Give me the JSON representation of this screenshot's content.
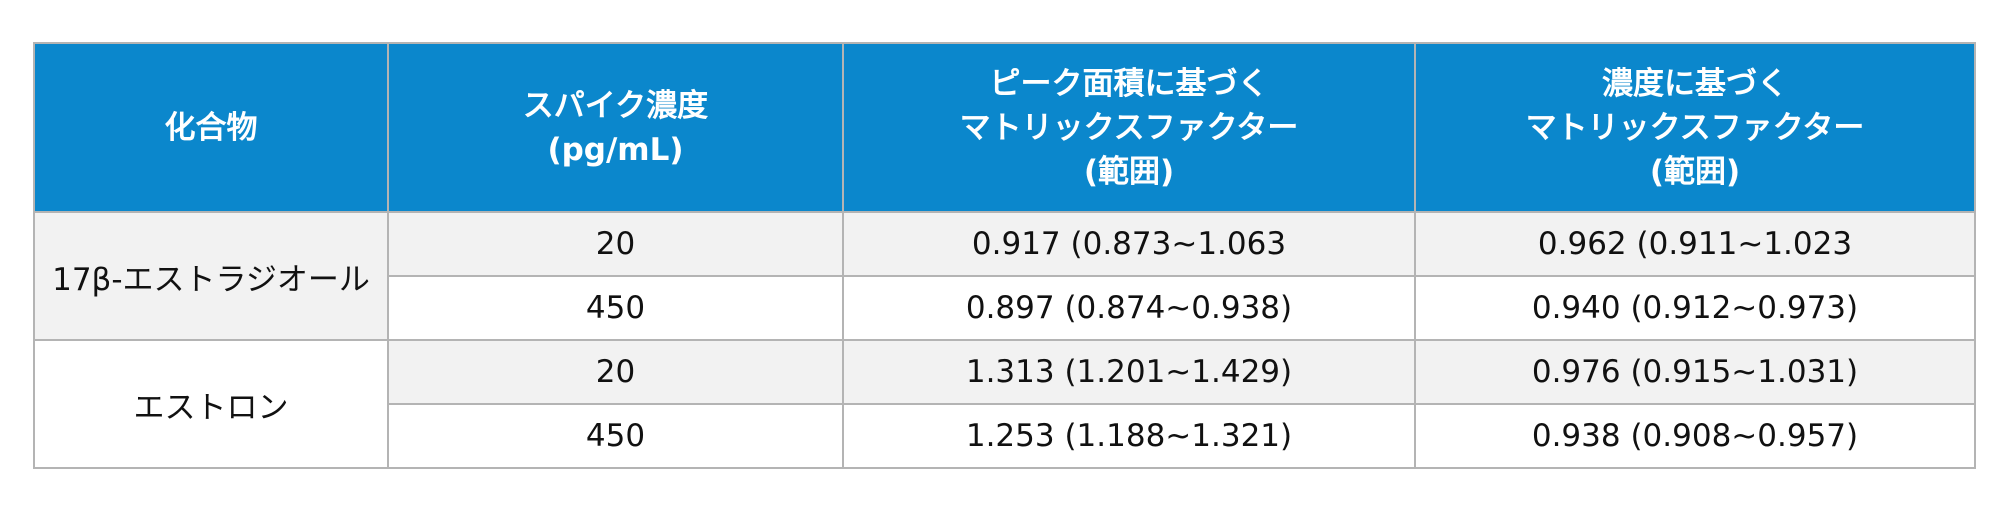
{
  "header": {
    "col1": "化合物",
    "col2": [
      "スパイク濃度",
      "(pg/mL)"
    ],
    "col3": [
      "ピーク面積に基づく",
      "マトリックスファクター",
      "(範囲)"
    ],
    "col4": [
      "濃度に基づく",
      "マトリックスファクター",
      "(範囲)"
    ]
  },
  "rows": [
    {
      "compound": "17β-エストラジオール",
      "entries": [
        {
          "spike": "20",
          "peak_area_mf": "0.917 (0.873~1.063",
          "conc_mf": "0.962 (0.911~1.023"
        },
        {
          "spike": "450",
          "peak_area_mf": "0.897 (0.874~0.938)",
          "conc_mf": "0.940 (0.912~0.973)"
        }
      ]
    },
    {
      "compound": "エストロン",
      "entries": [
        {
          "spike": "20",
          "peak_area_mf": "1.313 (1.201~1.429)",
          "conc_mf": "0.976 (0.915~1.031)"
        },
        {
          "spike": "450",
          "peak_area_mf": "1.253 (1.188~1.321)",
          "conc_mf": "0.938 (0.908~0.957)"
        }
      ]
    }
  ],
  "colors": {
    "header_bg": "#0b87cc",
    "header_text": "#ffffff",
    "border": "#b4b4b4",
    "shaded_row": "#f2f2f2"
  }
}
